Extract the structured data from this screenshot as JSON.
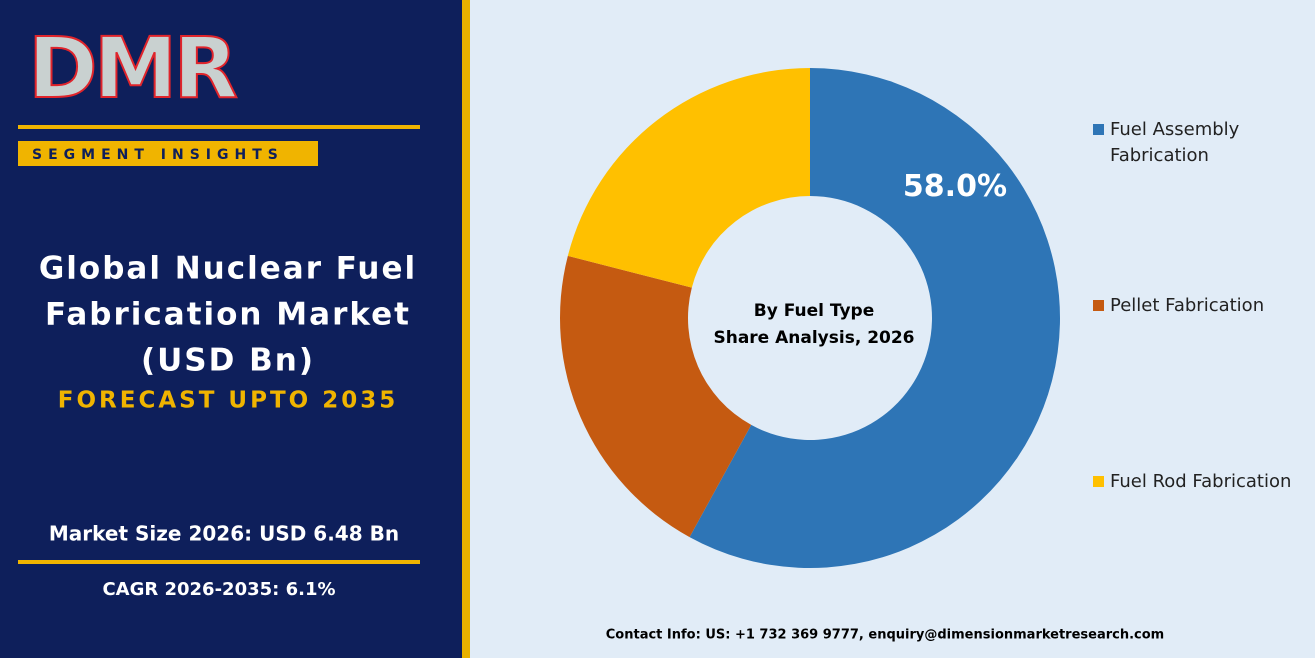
{
  "logo": "DMR",
  "badge": "SEGMENT INSIGHTS",
  "headline": [
    "Global Nuclear Fuel",
    "Fabrication Market",
    "(USD Bn)"
  ],
  "forecast": "FORECAST UPTO 2035",
  "market_size": "Market Size 2026: USD 6.48 Bn",
  "cagr": "CAGR 2026-2035: 6.1%",
  "contact": "Contact Info: US: +1 732 369 9777, enquiry@dimensionmarketresearch.com",
  "chart_data": {
    "type": "pie",
    "title": [
      "By Fuel Type",
      "Share Analysis, 2026"
    ],
    "categories": [
      "Fuel Assembly Fabrication",
      "Pellet Fabrication",
      "Fuel Rod Fabrication"
    ],
    "values": [
      58.0,
      21,
      21
    ],
    "value_labels": [
      "58.0%",
      null,
      null
    ],
    "colors": [
      "#2e75b6",
      "#c55a11",
      "#ffc000"
    ],
    "legend": "right"
  }
}
